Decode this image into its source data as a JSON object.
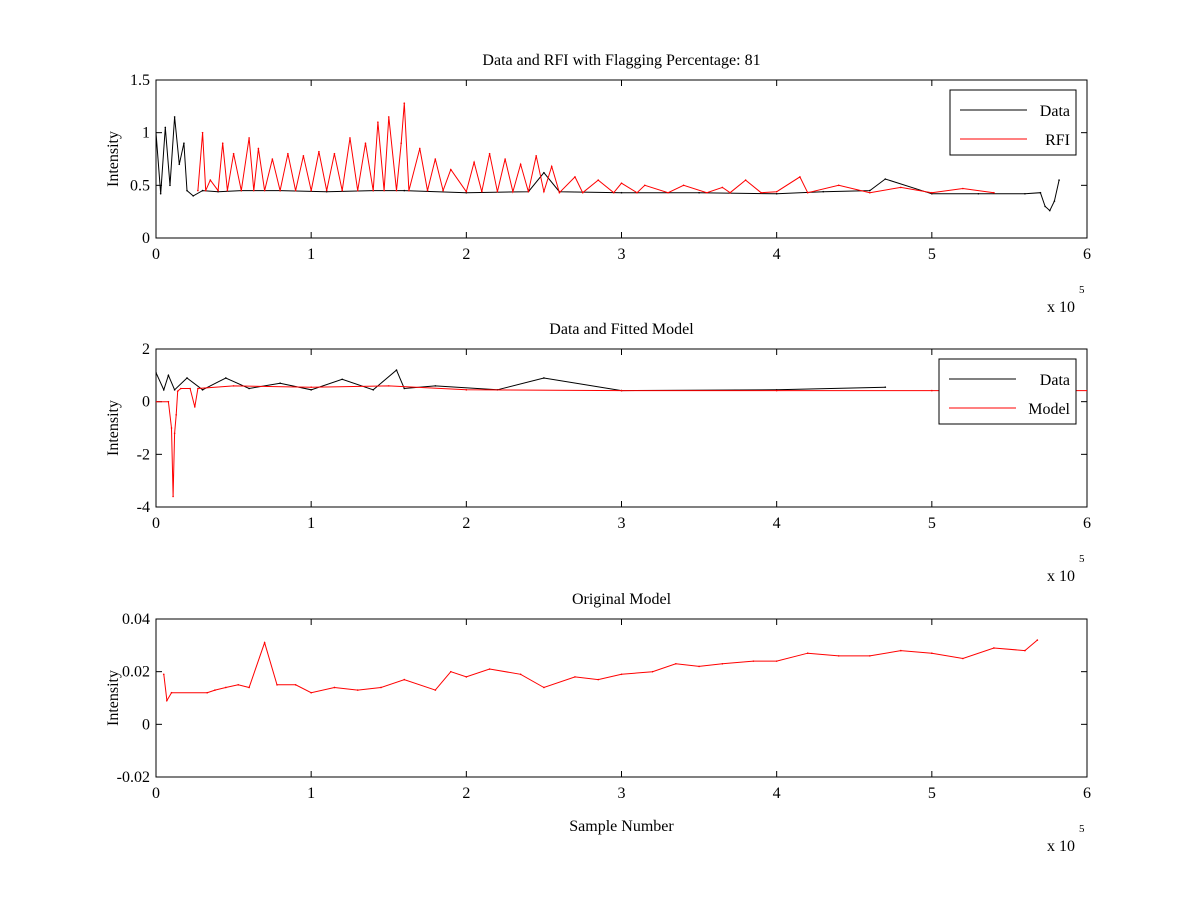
{
  "figure": {
    "background": "#ffffff"
  },
  "chart_data": [
    {
      "type": "line",
      "title": "Data and RFI with Flagging Percentage: 81",
      "xlabel": "",
      "ylabel": "Intensity",
      "xlim": [
        0,
        600000
      ],
      "ylim": [
        0,
        1.5
      ],
      "xticks": [
        0,
        100000,
        200000,
        300000,
        400000,
        500000,
        600000
      ],
      "xtick_labels": [
        "0",
        "1",
        "2",
        "3",
        "4",
        "5",
        "6"
      ],
      "yticks": [
        0,
        0.5,
        1,
        1.5
      ],
      "ytick_labels": [
        "0",
        "0.5",
        "1",
        "1.5"
      ],
      "x_exponent_label": "x 10",
      "x_exponent_power": "5",
      "legend_position": "top-right",
      "series": [
        {
          "name": "Data",
          "color": "#000000",
          "x": [
            0,
            3000,
            6000,
            9000,
            12000,
            15000,
            18000,
            20000,
            24000,
            30000,
            40000,
            55000,
            80000,
            110000,
            140000,
            160000,
            200000,
            240000,
            250000,
            260000,
            300000,
            350000,
            400000,
            430000,
            460000,
            470000,
            500000,
            530000,
            560000,
            570000,
            573000,
            576000,
            579000,
            582000
          ],
          "y": [
            1.0,
            0.42,
            1.05,
            0.5,
            1.15,
            0.7,
            0.9,
            0.45,
            0.4,
            0.45,
            0.44,
            0.45,
            0.45,
            0.44,
            0.45,
            0.45,
            0.43,
            0.44,
            0.62,
            0.44,
            0.43,
            0.43,
            0.42,
            0.44,
            0.45,
            0.56,
            0.42,
            0.42,
            0.42,
            0.43,
            0.3,
            0.26,
            0.35,
            0.55
          ]
        },
        {
          "name": "RFI",
          "color": "#ff0000",
          "x": [
            27000,
            30000,
            32000,
            35000,
            40000,
            43000,
            46000,
            50000,
            55000,
            60000,
            63000,
            66000,
            70000,
            75000,
            80000,
            85000,
            90000,
            95000,
            100000,
            105000,
            110000,
            115000,
            120000,
            125000,
            130000,
            135000,
            140000,
            143000,
            147000,
            150000,
            155000,
            158000,
            160000,
            163000,
            170000,
            175000,
            180000,
            185000,
            190000,
            200000,
            205000,
            210000,
            215000,
            220000,
            225000,
            230000,
            235000,
            240000,
            245000,
            250000,
            255000,
            260000,
            270000,
            275000,
            285000,
            295000,
            300000,
            310000,
            315000,
            330000,
            340000,
            355000,
            365000,
            370000,
            380000,
            390000,
            400000,
            415000,
            420000,
            440000,
            460000,
            480000,
            500000,
            520000,
            540000
          ],
          "y": [
            0.45,
            1.0,
            0.45,
            0.55,
            0.45,
            0.9,
            0.45,
            0.8,
            0.45,
            0.95,
            0.45,
            0.85,
            0.45,
            0.75,
            0.45,
            0.8,
            0.45,
            0.78,
            0.45,
            0.82,
            0.45,
            0.8,
            0.45,
            0.95,
            0.45,
            0.9,
            0.45,
            1.1,
            0.45,
            1.15,
            0.45,
            0.9,
            1.28,
            0.45,
            0.85,
            0.45,
            0.75,
            0.45,
            0.65,
            0.44,
            0.72,
            0.44,
            0.8,
            0.44,
            0.75,
            0.44,
            0.7,
            0.44,
            0.78,
            0.44,
            0.68,
            0.43,
            0.58,
            0.43,
            0.55,
            0.43,
            0.52,
            0.43,
            0.5,
            0.43,
            0.5,
            0.43,
            0.48,
            0.43,
            0.55,
            0.43,
            0.44,
            0.58,
            0.43,
            0.5,
            0.43,
            0.48,
            0.43,
            0.47,
            0.43
          ]
        }
      ]
    },
    {
      "type": "line",
      "title": "Data and Fitted Model",
      "xlabel": "",
      "ylabel": "Intensity",
      "xlim": [
        0,
        600000
      ],
      "ylim": [
        -4,
        2
      ],
      "xticks": [
        0,
        100000,
        200000,
        300000,
        400000,
        500000,
        600000
      ],
      "xtick_labels": [
        "0",
        "1",
        "2",
        "3",
        "4",
        "5",
        "6"
      ],
      "yticks": [
        -4,
        -2,
        0,
        2
      ],
      "ytick_labels": [
        "-4",
        "-2",
        "0",
        "2"
      ],
      "x_exponent_label": "x 10",
      "x_exponent_power": "5",
      "legend_position": "top-right",
      "series": [
        {
          "name": "Data",
          "color": "#000000",
          "x": [
            0,
            5000,
            8000,
            12000,
            20000,
            30000,
            45000,
            60000,
            80000,
            100000,
            120000,
            140000,
            155000,
            160000,
            180000,
            220000,
            250000,
            300000,
            400000,
            470000
          ],
          "y": [
            1.1,
            0.45,
            1.0,
            0.45,
            0.9,
            0.45,
            0.9,
            0.5,
            0.7,
            0.45,
            0.85,
            0.45,
            1.2,
            0.5,
            0.6,
            0.45,
            0.9,
            0.42,
            0.45,
            0.55
          ]
        },
        {
          "name": "Model",
          "color": "#ff0000",
          "x": [
            0,
            8000,
            10000,
            11000,
            12000,
            13000,
            14000,
            16000,
            22000,
            25000,
            27000,
            50000,
            100000,
            150000,
            200000,
            300000,
            400000,
            500000,
            600000
          ],
          "y": [
            0,
            0,
            -1.0,
            -3.6,
            -1.2,
            -0.5,
            0.4,
            0.5,
            0.5,
            -0.2,
            0.5,
            0.6,
            0.55,
            0.6,
            0.45,
            0.42,
            0.42,
            0.42,
            0.42
          ]
        }
      ]
    },
    {
      "type": "line",
      "title": "Original Model",
      "xlabel": "Sample Number",
      "ylabel": "Intensity",
      "xlim": [
        0,
        600000
      ],
      "ylim": [
        -0.02,
        0.04
      ],
      "xticks": [
        0,
        100000,
        200000,
        300000,
        400000,
        500000,
        600000
      ],
      "xtick_labels": [
        "0",
        "1",
        "2",
        "3",
        "4",
        "5",
        "6"
      ],
      "yticks": [
        -0.02,
        0,
        0.02,
        0.04
      ],
      "ytick_labels": [
        "-0.02",
        "0",
        "0.02",
        "0.04"
      ],
      "x_exponent_label": "x 10",
      "x_exponent_power": "5",
      "series": [
        {
          "color": "#ff0000",
          "x": [
            5000,
            7000,
            10000,
            33000,
            38000,
            45000,
            53000,
            60000,
            70000,
            78000,
            90000,
            100000,
            115000,
            130000,
            145000,
            160000,
            180000,
            190000,
            200000,
            215000,
            235000,
            250000,
            270000,
            285000,
            300000,
            320000,
            335000,
            350000,
            365000,
            385000,
            400000,
            420000,
            440000,
            460000,
            480000,
            500000,
            520000,
            540000,
            560000,
            568000
          ],
          "y": [
            0.019,
            0.009,
            0.012,
            0.012,
            0.013,
            0.014,
            0.015,
            0.014,
            0.031,
            0.015,
            0.015,
            0.012,
            0.014,
            0.013,
            0.014,
            0.017,
            0.013,
            0.02,
            0.018,
            0.021,
            0.019,
            0.014,
            0.018,
            0.017,
            0.019,
            0.02,
            0.023,
            0.022,
            0.023,
            0.024,
            0.024,
            0.027,
            0.026,
            0.026,
            0.028,
            0.027,
            0.025,
            0.029,
            0.028,
            0.032
          ]
        }
      ]
    }
  ]
}
